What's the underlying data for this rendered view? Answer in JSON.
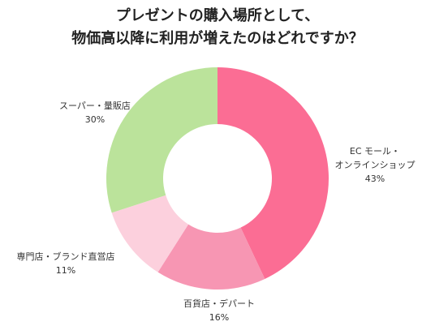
{
  "chart_data": {
    "type": "pie",
    "donut": true,
    "title_lines": [
      "プレゼントの購入場所として、",
      "物価高以降に利用が増えたのはどれですか？"
    ],
    "categories": [
      "ECモール・オンラインショップ",
      "百貨店・デパート",
      "専門店・ブランド直営店",
      "スーパー・量販店"
    ],
    "label_lines": [
      [
        "EC モール・",
        "オンラインショップ"
      ],
      [
        "百貨店・デパート"
      ],
      [
        "専門店・ブランド直営店"
      ],
      [
        "スーパー・量販店"
      ]
    ],
    "values": [
      43,
      16,
      11,
      30
    ],
    "value_labels": [
      "43%",
      "16%",
      "11%",
      "30%"
    ],
    "colors": [
      "#fb6d94",
      "#f796b3",
      "#fcd0dd",
      "#bbe39b"
    ],
    "start_angle": "12 o'clock",
    "direction": "clockwise"
  }
}
